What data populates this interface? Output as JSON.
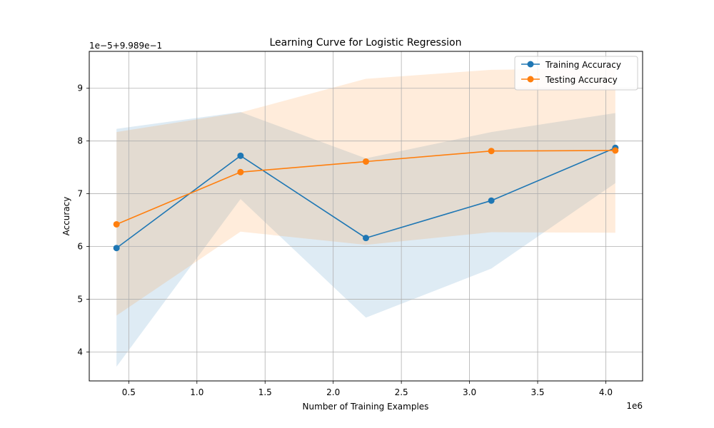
{
  "chart_data": {
    "type": "line",
    "title": "Learning Curve for Logistic Regression",
    "xlabel": "Number of Training Examples",
    "ylabel": "Accuracy",
    "x_offset_label": "1e6",
    "y_offset_label": "1e−5+9.989e−1",
    "x": [
      0.41,
      1.32,
      2.24,
      3.16,
      4.07
    ],
    "xlim": [
      0.21,
      4.27
    ],
    "ylim": [
      3.45,
      9.7
    ],
    "xticks": [
      0.5,
      1.0,
      1.5,
      2.0,
      2.5,
      3.0,
      3.5,
      4.0
    ],
    "xtick_labels": [
      "0.5",
      "1.0",
      "1.5",
      "2.0",
      "2.5",
      "3.0",
      "3.5",
      "4.0"
    ],
    "yticks": [
      4,
      5,
      6,
      7,
      8,
      9
    ],
    "ytick_labels": [
      "4",
      "5",
      "6",
      "7",
      "8",
      "9"
    ],
    "grid": true,
    "legend_position": "top-right",
    "series": [
      {
        "name": "Training Accuracy",
        "color": "#1f77b4",
        "values": [
          5.97,
          7.72,
          6.16,
          6.87,
          7.87
        ],
        "band_upper": [
          8.23,
          8.55,
          7.67,
          8.17,
          8.53
        ],
        "band_lower": [
          3.72,
          6.9,
          4.65,
          5.58,
          7.2
        ]
      },
      {
        "name": "Testing Accuracy",
        "color": "#ff7f0e",
        "values": [
          6.42,
          7.41,
          7.61,
          7.81,
          7.82
        ],
        "band_upper": [
          8.17,
          8.54,
          9.18,
          9.35,
          9.38
        ],
        "band_lower": [
          4.69,
          6.28,
          6.03,
          6.27,
          6.26
        ]
      }
    ]
  }
}
